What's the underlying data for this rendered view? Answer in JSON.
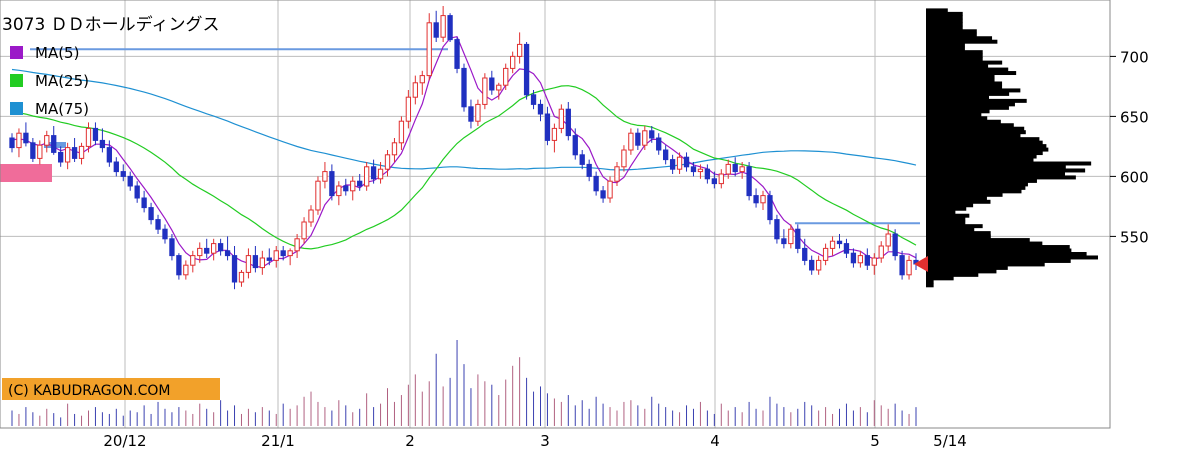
{
  "chart_data": {
    "type": "candlestick",
    "title": "3073 ＤＤホールディングス",
    "legend": [
      {
        "name": "MA(5)",
        "color": "#9b19c8"
      },
      {
        "name": "MA(25)",
        "color": "#22cc22"
      },
      {
        "name": "MA(75)",
        "color": "#1e90d2"
      }
    ],
    "copyright": "(C) KABUDRAGON.COM",
    "y_ticks": [
      550,
      600,
      650,
      700
    ],
    "y_range": [
      462,
      742
    ],
    "x_ticks": [
      "20/12",
      "21/1",
      "2",
      "3",
      "4",
      "5",
      "5/14"
    ],
    "last_price": 527,
    "reference_lines": [
      {
        "value": 706,
        "color": "#6a9ae0"
      },
      {
        "value": 561,
        "color": "#6a9ae0"
      }
    ],
    "colors": {
      "up": "#e03030",
      "down": "#2030c0",
      "ma5": "#9b19c8",
      "ma25": "#22cc22",
      "ma75": "#1e90d2",
      "grid": "#bdbdbd",
      "profile": "#000000",
      "marker": "#e03030"
    },
    "candles": [
      {
        "o": 632,
        "h": 636,
        "l": 620,
        "c": 624
      },
      {
        "o": 624,
        "h": 640,
        "l": 616,
        "c": 636
      },
      {
        "o": 636,
        "h": 645,
        "l": 625,
        "c": 628
      },
      {
        "o": 628,
        "h": 632,
        "l": 612,
        "c": 615
      },
      {
        "o": 615,
        "h": 630,
        "l": 610,
        "c": 626
      },
      {
        "o": 626,
        "h": 638,
        "l": 620,
        "c": 634
      },
      {
        "o": 634,
        "h": 642,
        "l": 618,
        "c": 620
      },
      {
        "o": 620,
        "h": 625,
        "l": 608,
        "c": 612
      },
      {
        "o": 612,
        "h": 628,
        "l": 606,
        "c": 624
      },
      {
        "o": 624,
        "h": 632,
        "l": 612,
        "c": 615
      },
      {
        "o": 615,
        "h": 628,
        "l": 610,
        "c": 625
      },
      {
        "o": 625,
        "h": 645,
        "l": 620,
        "c": 640
      },
      {
        "o": 640,
        "h": 645,
        "l": 626,
        "c": 630
      },
      {
        "o": 630,
        "h": 640,
        "l": 620,
        "c": 624
      },
      {
        "o": 624,
        "h": 630,
        "l": 608,
        "c": 612
      },
      {
        "o": 612,
        "h": 616,
        "l": 600,
        "c": 604
      },
      {
        "o": 604,
        "h": 610,
        "l": 596,
        "c": 600
      },
      {
        "o": 600,
        "h": 604,
        "l": 588,
        "c": 592
      },
      {
        "o": 592,
        "h": 596,
        "l": 578,
        "c": 582
      },
      {
        "o": 582,
        "h": 588,
        "l": 570,
        "c": 574
      },
      {
        "o": 574,
        "h": 578,
        "l": 560,
        "c": 564
      },
      {
        "o": 564,
        "h": 568,
        "l": 552,
        "c": 556
      },
      {
        "o": 556,
        "h": 560,
        "l": 544,
        "c": 548
      },
      {
        "o": 548,
        "h": 552,
        "l": 530,
        "c": 534
      },
      {
        "o": 534,
        "h": 536,
        "l": 514,
        "c": 518
      },
      {
        "o": 518,
        "h": 530,
        "l": 514,
        "c": 526
      },
      {
        "o": 526,
        "h": 538,
        "l": 520,
        "c": 534
      },
      {
        "o": 534,
        "h": 545,
        "l": 528,
        "c": 540
      },
      {
        "o": 540,
        "h": 548,
        "l": 532,
        "c": 536
      },
      {
        "o": 536,
        "h": 548,
        "l": 530,
        "c": 544
      },
      {
        "o": 544,
        "h": 548,
        "l": 534,
        "c": 538
      },
      {
        "o": 538,
        "h": 550,
        "l": 530,
        "c": 534
      },
      {
        "o": 534,
        "h": 542,
        "l": 506,
        "c": 512
      },
      {
        "o": 512,
        "h": 522,
        "l": 508,
        "c": 520
      },
      {
        "o": 520,
        "h": 540,
        "l": 515,
        "c": 534
      },
      {
        "o": 534,
        "h": 542,
        "l": 520,
        "c": 524
      },
      {
        "o": 524,
        "h": 538,
        "l": 518,
        "c": 532
      },
      {
        "o": 532,
        "h": 540,
        "l": 526,
        "c": 530
      },
      {
        "o": 530,
        "h": 542,
        "l": 524,
        "c": 538
      },
      {
        "o": 538,
        "h": 542,
        "l": 530,
        "c": 534
      },
      {
        "o": 534,
        "h": 540,
        "l": 526,
        "c": 538
      },
      {
        "o": 538,
        "h": 552,
        "l": 532,
        "c": 548
      },
      {
        "o": 548,
        "h": 566,
        "l": 544,
        "c": 562
      },
      {
        "o": 562,
        "h": 576,
        "l": 558,
        "c": 572
      },
      {
        "o": 572,
        "h": 600,
        "l": 568,
        "c": 596
      },
      {
        "o": 596,
        "h": 612,
        "l": 590,
        "c": 604
      },
      {
        "o": 604,
        "h": 610,
        "l": 580,
        "c": 584
      },
      {
        "o": 584,
        "h": 596,
        "l": 576,
        "c": 592
      },
      {
        "o": 592,
        "h": 598,
        "l": 584,
        "c": 588
      },
      {
        "o": 588,
        "h": 600,
        "l": 580,
        "c": 596
      },
      {
        "o": 596,
        "h": 602,
        "l": 588,
        "c": 592
      },
      {
        "o": 592,
        "h": 612,
        "l": 588,
        "c": 608
      },
      {
        "o": 608,
        "h": 614,
        "l": 594,
        "c": 598
      },
      {
        "o": 598,
        "h": 612,
        "l": 594,
        "c": 606
      },
      {
        "o": 606,
        "h": 622,
        "l": 600,
        "c": 618
      },
      {
        "o": 618,
        "h": 632,
        "l": 612,
        "c": 628
      },
      {
        "o": 628,
        "h": 650,
        "l": 622,
        "c": 646
      },
      {
        "o": 646,
        "h": 672,
        "l": 640,
        "c": 666
      },
      {
        "o": 666,
        "h": 684,
        "l": 660,
        "c": 678
      },
      {
        "o": 678,
        "h": 688,
        "l": 668,
        "c": 684
      },
      {
        "o": 684,
        "h": 736,
        "l": 680,
        "c": 728
      },
      {
        "o": 728,
        "h": 738,
        "l": 712,
        "c": 716
      },
      {
        "o": 716,
        "h": 742,
        "l": 712,
        "c": 734
      },
      {
        "o": 734,
        "h": 736,
        "l": 712,
        "c": 714
      },
      {
        "o": 714,
        "h": 716,
        "l": 686,
        "c": 690
      },
      {
        "o": 690,
        "h": 694,
        "l": 654,
        "c": 658
      },
      {
        "o": 658,
        "h": 664,
        "l": 640,
        "c": 646
      },
      {
        "o": 646,
        "h": 664,
        "l": 642,
        "c": 660
      },
      {
        "o": 660,
        "h": 686,
        "l": 656,
        "c": 682
      },
      {
        "o": 682,
        "h": 688,
        "l": 668,
        "c": 672
      },
      {
        "o": 672,
        "h": 678,
        "l": 664,
        "c": 676
      },
      {
        "o": 676,
        "h": 694,
        "l": 672,
        "c": 690
      },
      {
        "o": 690,
        "h": 704,
        "l": 686,
        "c": 700
      },
      {
        "o": 700,
        "h": 720,
        "l": 694,
        "c": 710
      },
      {
        "o": 710,
        "h": 712,
        "l": 664,
        "c": 668
      },
      {
        "o": 668,
        "h": 672,
        "l": 656,
        "c": 660
      },
      {
        "o": 660,
        "h": 664,
        "l": 646,
        "c": 652
      },
      {
        "o": 652,
        "h": 658,
        "l": 626,
        "c": 630
      },
      {
        "o": 630,
        "h": 644,
        "l": 620,
        "c": 640
      },
      {
        "o": 640,
        "h": 660,
        "l": 636,
        "c": 656
      },
      {
        "o": 656,
        "h": 662,
        "l": 630,
        "c": 634
      },
      {
        "o": 634,
        "h": 640,
        "l": 614,
        "c": 618
      },
      {
        "o": 618,
        "h": 622,
        "l": 606,
        "c": 610
      },
      {
        "o": 610,
        "h": 614,
        "l": 596,
        "c": 600
      },
      {
        "o": 600,
        "h": 604,
        "l": 584,
        "c": 588
      },
      {
        "o": 588,
        "h": 592,
        "l": 578,
        "c": 582
      },
      {
        "o": 582,
        "h": 600,
        "l": 578,
        "c": 596
      },
      {
        "o": 596,
        "h": 612,
        "l": 592,
        "c": 608
      },
      {
        "o": 608,
        "h": 626,
        "l": 604,
        "c": 622
      },
      {
        "o": 622,
        "h": 640,
        "l": 618,
        "c": 636
      },
      {
        "o": 636,
        "h": 640,
        "l": 622,
        "c": 626
      },
      {
        "o": 626,
        "h": 642,
        "l": 622,
        "c": 638
      },
      {
        "o": 638,
        "h": 642,
        "l": 628,
        "c": 632
      },
      {
        "o": 632,
        "h": 636,
        "l": 618,
        "c": 622
      },
      {
        "o": 622,
        "h": 626,
        "l": 610,
        "c": 614
      },
      {
        "o": 614,
        "h": 618,
        "l": 602,
        "c": 606
      },
      {
        "o": 606,
        "h": 620,
        "l": 602,
        "c": 616
      },
      {
        "o": 616,
        "h": 620,
        "l": 604,
        "c": 608
      },
      {
        "o": 608,
        "h": 612,
        "l": 600,
        "c": 604
      },
      {
        "o": 604,
        "h": 610,
        "l": 598,
        "c": 606
      },
      {
        "o": 606,
        "h": 610,
        "l": 594,
        "c": 598
      },
      {
        "o": 598,
        "h": 604,
        "l": 590,
        "c": 594
      },
      {
        "o": 594,
        "h": 606,
        "l": 590,
        "c": 602
      },
      {
        "o": 602,
        "h": 614,
        "l": 598,
        "c": 610
      },
      {
        "o": 610,
        "h": 616,
        "l": 600,
        "c": 604
      },
      {
        "o": 604,
        "h": 612,
        "l": 598,
        "c": 608
      },
      {
        "o": 608,
        "h": 612,
        "l": 580,
        "c": 584
      },
      {
        "o": 584,
        "h": 590,
        "l": 574,
        "c": 578
      },
      {
        "o": 578,
        "h": 588,
        "l": 572,
        "c": 584
      },
      {
        "o": 584,
        "h": 588,
        "l": 560,
        "c": 564
      },
      {
        "o": 564,
        "h": 568,
        "l": 544,
        "c": 548
      },
      {
        "o": 548,
        "h": 556,
        "l": 540,
        "c": 544
      },
      {
        "o": 544,
        "h": 560,
        "l": 540,
        "c": 556
      },
      {
        "o": 556,
        "h": 560,
        "l": 536,
        "c": 540
      },
      {
        "o": 540,
        "h": 548,
        "l": 526,
        "c": 530
      },
      {
        "o": 530,
        "h": 534,
        "l": 518,
        "c": 522
      },
      {
        "o": 522,
        "h": 534,
        "l": 518,
        "c": 530
      },
      {
        "o": 530,
        "h": 544,
        "l": 526,
        "c": 540
      },
      {
        "o": 540,
        "h": 550,
        "l": 534,
        "c": 546
      },
      {
        "o": 546,
        "h": 552,
        "l": 540,
        "c": 544
      },
      {
        "o": 544,
        "h": 548,
        "l": 532,
        "c": 536
      },
      {
        "o": 536,
        "h": 540,
        "l": 524,
        "c": 528
      },
      {
        "o": 528,
        "h": 538,
        "l": 524,
        "c": 534
      },
      {
        "o": 534,
        "h": 540,
        "l": 522,
        "c": 526
      },
      {
        "o": 526,
        "h": 536,
        "l": 518,
        "c": 532
      },
      {
        "o": 532,
        "h": 546,
        "l": 528,
        "c": 542
      },
      {
        "o": 542,
        "h": 560,
        "l": 538,
        "c": 552
      },
      {
        "o": 552,
        "h": 556,
        "l": 530,
        "c": 534
      },
      {
        "o": 534,
        "h": 538,
        "l": 514,
        "c": 518
      },
      {
        "o": 518,
        "h": 534,
        "l": 514,
        "c": 530
      },
      {
        "o": 530,
        "h": 536,
        "l": 522,
        "c": 527
      }
    ],
    "volumes": [
      18,
      14,
      22,
      16,
      12,
      20,
      15,
      10,
      26,
      14,
      12,
      18,
      22,
      16,
      14,
      20,
      12,
      18,
      16,
      24,
      14,
      28,
      20,
      16,
      22,
      18,
      14,
      26,
      20,
      16,
      30,
      18,
      24,
      14,
      20,
      16,
      22,
      18,
      14,
      26,
      20,
      24,
      34,
      40,
      28,
      22,
      18,
      30,
      24,
      16,
      20,
      38,
      22,
      26,
      44,
      28,
      36,
      48,
      60,
      40,
      52,
      84,
      46,
      56,
      100,
      72,
      44,
      60,
      52,
      48,
      36,
      54,
      70,
      80,
      56,
      40,
      46,
      38,
      32,
      28,
      36,
      24,
      30,
      20,
      34,
      26,
      22,
      18,
      28,
      30,
      24,
      20,
      34,
      26,
      22,
      18,
      16,
      24,
      20,
      28,
      18,
      14,
      26,
      18,
      22,
      16,
      28,
      20,
      18,
      34,
      26,
      22,
      16,
      20,
      28,
      24,
      18,
      22,
      14,
      20,
      26,
      18,
      22,
      16,
      30,
      24,
      20,
      26,
      18,
      14,
      22
    ]
  }
}
